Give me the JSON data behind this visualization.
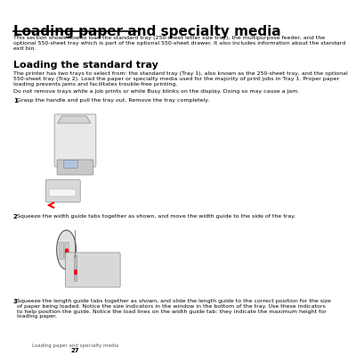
{
  "title": "Loading paper and specialty media",
  "section_title": "Loading the standard tray",
  "intro_text": "This section shows how to load the standard tray (250-sheet letter size tray), the multipurpose feeder, and the\noptional 550-sheet tray which is part of the optional 550-sheet drawer. It also includes information about the standard\nexit bin.",
  "body_text1": "The printer has two trays to select from: the standard tray (Tray 1), also known as the 250-sheet tray, and the optional\n550-sheet tray (Tray 2). Load the paper or specialty media used for the majority of print jobs in Tray 1. Proper paper\nloading prevents jams and facilitates trouble-free printing.",
  "body_text2": "Do not remove trays while a job prints or while Busy blinks on the display. Doing so may cause a jam.",
  "step1_label": "1",
  "step1_text": "Grasp the handle and pull the tray out. Remove the tray completely.",
  "step2_label": "2",
  "step2_text": "Squeeze the width guide tabs together as shown, and move the width guide to the side of the tray.",
  "step3_label": "3",
  "step3_text": "Squeeze the length guide tabs together as shown, and slide the length guide to the correct position for the size\nof paper being loaded. Notice the size indicators in the window in the bottom of the tray. Use these indicators\nto help position the guide. Notice the load lines on the width guide tab: they indicate the maximum height for\nloading paper.",
  "footer_text": "Loading paper and specialty media",
  "page_number": "27",
  "bg_color": "#ffffff",
  "text_color": "#000000",
  "title_color": "#000000",
  "rule_color": "#000000",
  "step_bold_color": "#000000"
}
